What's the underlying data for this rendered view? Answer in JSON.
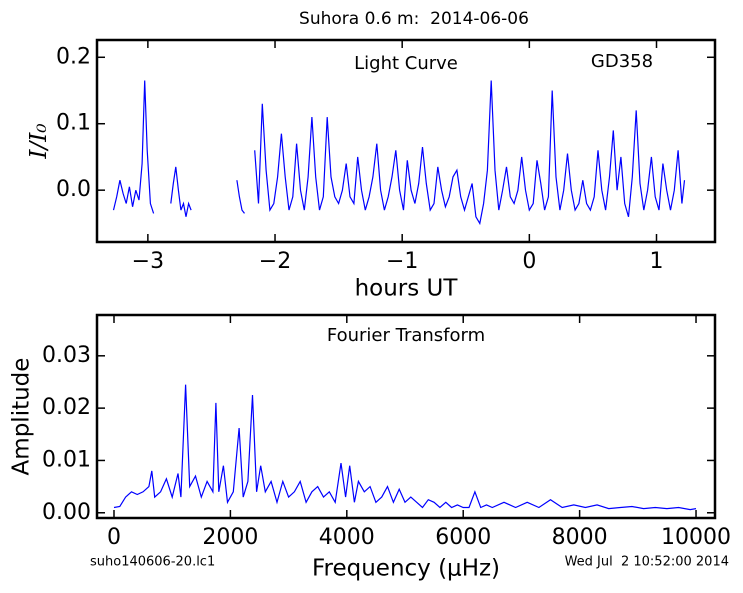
{
  "header": {
    "title": "Suhora 0.6 m:  2014-06-06"
  },
  "footer": {
    "left": "suho140606-20.lc1",
    "right": "Wed Jul  2 10:52:00 2014"
  },
  "chart_data": [
    {
      "type": "line",
      "x_label": "hours UT",
      "y_label": "I/I₀",
      "annotations": [
        "Light Curve",
        "GD358"
      ],
      "xlim": [
        -3.4,
        1.46
      ],
      "ylim": [
        -0.078,
        0.226
      ],
      "xticks": [
        {
          "value": -3,
          "label": "−3"
        },
        {
          "value": -2,
          "label": "−2"
        },
        {
          "value": -1,
          "label": "−1"
        },
        0,
        1
      ],
      "yticks": [
        {
          "value": 0,
          "label": "0.0"
        },
        0.1,
        0.2
      ],
      "x": [
        -3.27,
        -3.245,
        -3.22,
        -3.195,
        -3.17,
        -3.145,
        -3.12,
        -3.095,
        -3.07,
        -3.045,
        -3.025,
        -3.005,
        -2.98,
        -2.955,
        -2.9,
        -2.82,
        -2.8,
        -2.78,
        -2.76,
        -2.74,
        -2.72,
        -2.7,
        -2.68,
        -2.66,
        -2.5,
        -2.3,
        -2.28,
        -2.26,
        -2.24,
        -2.2,
        -2.16,
        -2.13,
        -2.1,
        -2.07,
        -2.04,
        -2.01,
        -1.98,
        -1.95,
        -1.92,
        -1.89,
        -1.86,
        -1.83,
        -1.8,
        -1.77,
        -1.74,
        -1.71,
        -1.68,
        -1.65,
        -1.62,
        -1.59,
        -1.56,
        -1.53,
        -1.5,
        -1.47,
        -1.44,
        -1.41,
        -1.38,
        -1.35,
        -1.32,
        -1.29,
        -1.26,
        -1.23,
        -1.2,
        -1.17,
        -1.14,
        -1.11,
        -1.08,
        -1.05,
        -1.02,
        -0.99,
        -0.96,
        -0.93,
        -0.9,
        -0.87,
        -0.84,
        -0.81,
        -0.78,
        -0.75,
        -0.72,
        -0.69,
        -0.66,
        -0.63,
        -0.6,
        -0.57,
        -0.54,
        -0.51,
        -0.48,
        -0.45,
        -0.42,
        -0.39,
        -0.36,
        -0.33,
        -0.3,
        -0.27,
        -0.24,
        -0.21,
        -0.18,
        -0.15,
        -0.12,
        -0.09,
        -0.06,
        -0.03,
        0.0,
        0.03,
        0.06,
        0.09,
        0.12,
        0.15,
        0.18,
        0.21,
        0.24,
        0.27,
        0.3,
        0.33,
        0.36,
        0.39,
        0.42,
        0.45,
        0.48,
        0.51,
        0.54,
        0.57,
        0.6,
        0.63,
        0.66,
        0.69,
        0.72,
        0.75,
        0.78,
        0.81,
        0.84,
        0.87,
        0.9,
        0.93,
        0.96,
        0.99,
        1.02,
        1.05,
        1.08,
        1.11,
        1.14,
        1.17,
        1.2,
        1.22
      ],
      "series": [
        {
          "color": "#0000ff",
          "values": [
            -0.03,
            -0.01,
            0.015,
            -0.005,
            -0.02,
            0.005,
            -0.025,
            0.0,
            -0.015,
            0.04,
            0.165,
            0.06,
            -0.02,
            -0.035,
            null,
            -0.02,
            0.01,
            0.035,
            0.0,
            -0.03,
            -0.02,
            -0.04,
            -0.02,
            -0.03,
            null,
            0.015,
            -0.01,
            -0.03,
            -0.035,
            null,
            0.06,
            -0.02,
            0.13,
            0.03,
            -0.03,
            -0.02,
            0.02,
            0.085,
            0.02,
            -0.03,
            -0.01,
            0.07,
            0.0,
            -0.03,
            0.02,
            0.11,
            0.02,
            -0.03,
            -0.01,
            0.11,
            0.02,
            -0.01,
            -0.02,
            0.0,
            0.04,
            -0.01,
            -0.02,
            0.05,
            0.0,
            -0.03,
            -0.01,
            0.02,
            0.07,
            0.0,
            -0.03,
            -0.01,
            0.02,
            0.06,
            0.0,
            -0.03,
            0.045,
            0.0,
            -0.02,
            0.01,
            0.065,
            0.01,
            -0.03,
            -0.02,
            0.035,
            0.0,
            -0.025,
            -0.01,
            0.02,
            0.03,
            -0.01,
            -0.03,
            -0.01,
            0.01,
            -0.04,
            -0.05,
            -0.02,
            0.03,
            0.165,
            0.03,
            -0.03,
            0.0,
            0.035,
            -0.01,
            -0.02,
            0.0,
            0.05,
            0.0,
            -0.03,
            -0.02,
            0.045,
            0.01,
            -0.03,
            -0.01,
            0.15,
            0.02,
            -0.03,
            0.0,
            0.055,
            0.0,
            -0.03,
            -0.02,
            0.015,
            -0.02,
            -0.03,
            -0.01,
            0.06,
            0.0,
            -0.03,
            0.02,
            0.09,
            0.0,
            0.05,
            -0.02,
            -0.04,
            0.02,
            0.12,
            0.01,
            -0.03,
            0.0,
            0.05,
            -0.01,
            -0.03,
            0.04,
            0.0,
            -0.03,
            0.0,
            0.06,
            -0.02,
            0.015
          ]
        }
      ]
    },
    {
      "type": "line",
      "x_label": "Frequency (μHz)",
      "y_label": "Amplitude",
      "annotations": [
        "Fourier Transform"
      ],
      "xlim": [
        -292,
        10326
      ],
      "ylim": [
        -0.001,
        0.0378
      ],
      "xticks": [
        0,
        2000,
        4000,
        6000,
        8000,
        10000
      ],
      "yticks": [
        {
          "value": 0,
          "label": "0.00"
        },
        0.01,
        0.02,
        0.03
      ],
      "x": [
        0,
        100,
        200,
        300,
        400,
        500,
        600,
        650,
        700,
        800,
        900,
        1000,
        1100,
        1150,
        1230,
        1300,
        1400,
        1500,
        1600,
        1700,
        1750,
        1800,
        1880,
        1950,
        2050,
        2150,
        2220,
        2300,
        2380,
        2450,
        2520,
        2600,
        2700,
        2800,
        2900,
        3000,
        3100,
        3200,
        3300,
        3400,
        3500,
        3600,
        3700,
        3800,
        3900,
        3980,
        4050,
        4130,
        4200,
        4300,
        4400,
        4500,
        4600,
        4700,
        4800,
        4900,
        5000,
        5100,
        5200,
        5300,
        5400,
        5500,
        5600,
        5700,
        5800,
        5900,
        6000,
        6100,
        6200,
        6300,
        6400,
        6500,
        6700,
        6900,
        7100,
        7300,
        7500,
        7700,
        7900,
        8100,
        8300,
        8500,
        8700,
        8900,
        9100,
        9300,
        9500,
        9700,
        9900,
        10000
      ],
      "series": [
        {
          "color": "#0000ff",
          "values": [
            0.001,
            0.0012,
            0.003,
            0.004,
            0.0035,
            0.004,
            0.005,
            0.008,
            0.003,
            0.004,
            0.0065,
            0.003,
            0.0075,
            0.003,
            0.0245,
            0.005,
            0.007,
            0.003,
            0.006,
            0.004,
            0.021,
            0.004,
            0.009,
            0.002,
            0.004,
            0.0162,
            0.003,
            0.006,
            0.0225,
            0.004,
            0.009,
            0.004,
            0.006,
            0.002,
            0.006,
            0.003,
            0.004,
            0.006,
            0.002,
            0.004,
            0.005,
            0.003,
            0.004,
            0.002,
            0.0095,
            0.003,
            0.009,
            0.002,
            0.006,
            0.004,
            0.005,
            0.002,
            0.003,
            0.005,
            0.002,
            0.0045,
            0.002,
            0.003,
            0.002,
            0.001,
            0.0025,
            0.002,
            0.001,
            0.002,
            0.001,
            0.0015,
            0.001,
            0.001,
            0.004,
            0.001,
            0.0015,
            0.001,
            0.002,
            0.001,
            0.002,
            0.001,
            0.0025,
            0.001,
            0.0015,
            0.001,
            0.0015,
            0.0008,
            0.001,
            0.0012,
            0.0008,
            0.001,
            0.0008,
            0.001,
            0.0006,
            0.0008
          ]
        }
      ]
    }
  ]
}
